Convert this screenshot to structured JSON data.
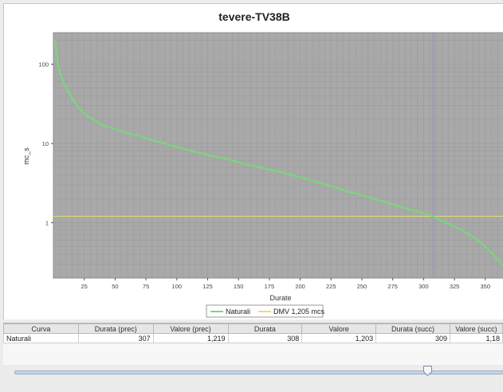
{
  "chart_data": {
    "type": "line",
    "title": "tevere-TV38B",
    "xlabel": "Durate",
    "ylabel": "mc_s",
    "y_scale": "log",
    "xlim": [
      0,
      365
    ],
    "ylim": [
      0.2,
      250
    ],
    "x_ticks": [
      "25",
      "50",
      "75",
      "100",
      "125",
      "150",
      "175",
      "200",
      "225",
      "250",
      "275",
      "300",
      "325",
      "350"
    ],
    "y_ticks": [
      "100",
      "10",
      "1"
    ],
    "grid": true,
    "legend_position": "bottom",
    "series": [
      {
        "name": "Naturali",
        "color": "#7ad67a",
        "x": [
          1,
          3,
          5,
          8,
          12,
          16,
          20,
          25,
          30,
          40,
          50,
          60,
          70,
          80,
          90,
          100,
          110,
          120,
          130,
          140,
          150,
          160,
          170,
          180,
          190,
          200,
          210,
          220,
          230,
          240,
          250,
          260,
          270,
          280,
          290,
          300,
          308,
          315,
          320,
          330,
          340,
          345,
          350,
          355,
          360,
          365
        ],
        "y": [
          200,
          120,
          80,
          60,
          45,
          35,
          29,
          24,
          21,
          17,
          15,
          13.5,
          12.3,
          11,
          10,
          9,
          8.2,
          7.5,
          6.9,
          6.4,
          5.8,
          5.3,
          4.9,
          4.5,
          4.1,
          3.75,
          3.4,
          3.05,
          2.75,
          2.45,
          2.2,
          2.0,
          1.8,
          1.6,
          1.45,
          1.32,
          1.203,
          1.05,
          0.98,
          0.82,
          0.66,
          0.58,
          0.5,
          0.42,
          0.34,
          0.28
        ]
      }
    ],
    "reference_line": {
      "name": "DMV 1,205 mcs",
      "value": 1.205,
      "color": "#e8e06a"
    },
    "marker_line": {
      "x": 308,
      "color": "#8b8be0"
    }
  },
  "legend": {
    "items": [
      {
        "label": "Naturali",
        "color": "#7ad67a"
      },
      {
        "label": "DMV 1,205 mcs",
        "color": "#e8e06a"
      }
    ]
  },
  "table": {
    "headers": [
      "Curva",
      "Durata (prec)",
      "Valore (prec)",
      "Durata",
      "Valore",
      "Durata (succ)",
      "Valore (succ)"
    ],
    "rows": [
      [
        "Naturali",
        "307",
        "1,219",
        "308",
        "1,203",
        "309",
        "1,18"
      ]
    ]
  },
  "slider": {
    "position": 0.85
  }
}
